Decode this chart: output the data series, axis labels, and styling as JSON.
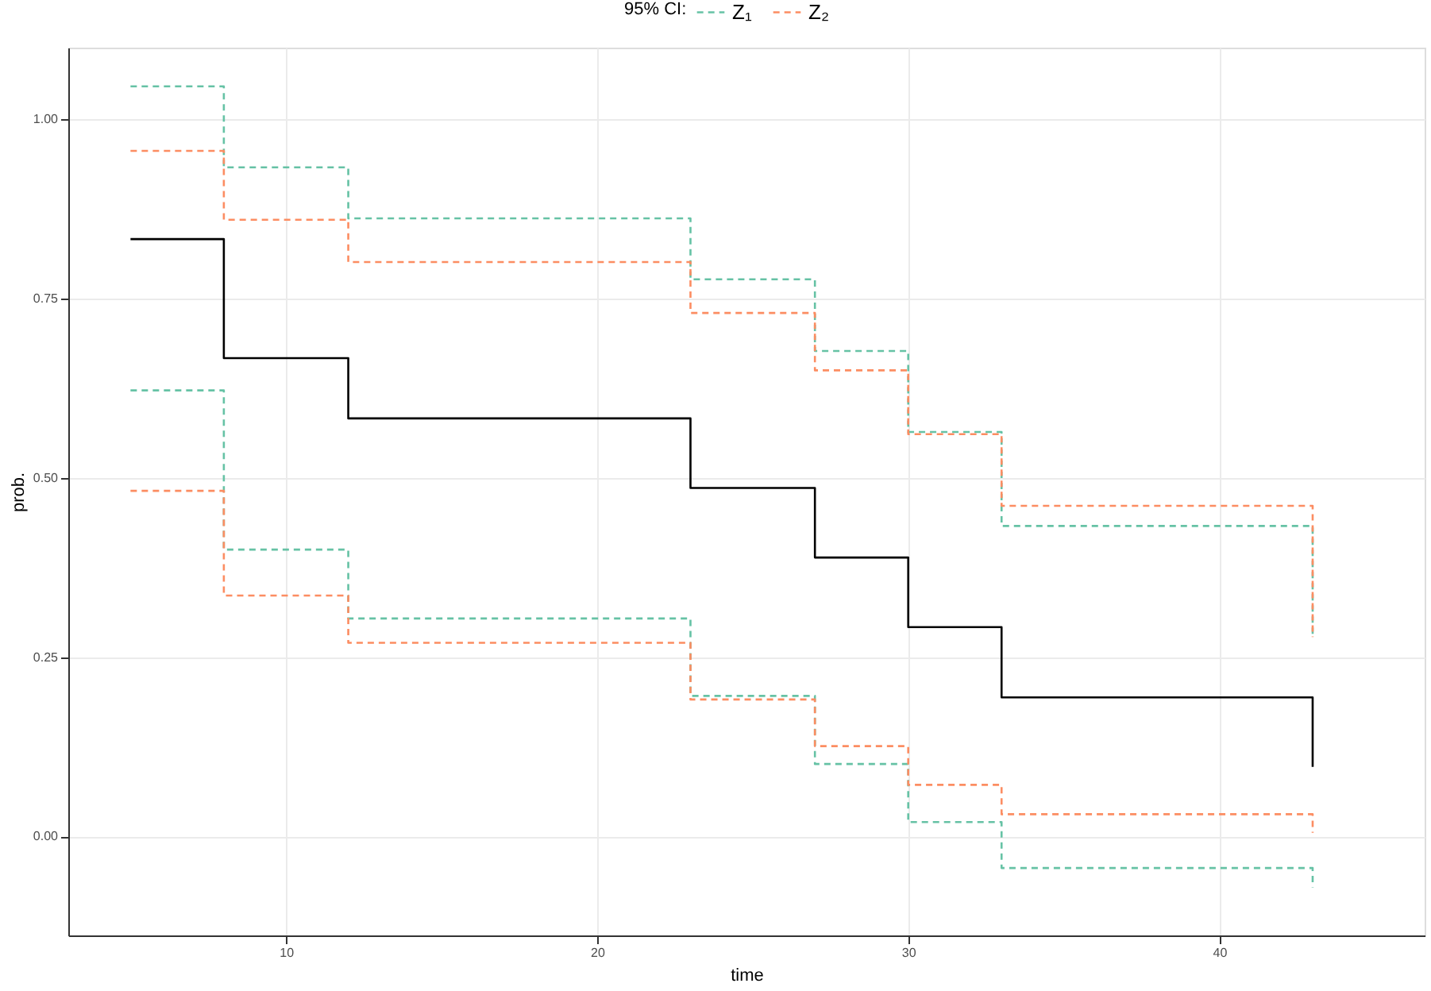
{
  "chart_data": {
    "type": "step",
    "xlabel": "time",
    "ylabel": "prob.",
    "legend_title": "95% CI:",
    "legend": "top",
    "x": [
      5,
      8,
      12,
      23,
      27,
      30,
      33,
      43
    ],
    "series": [
      {
        "color": "#000000",
        "line_style": "solid",
        "values": [
          0.833,
          0.667,
          0.583,
          0.486,
          0.389,
          0.292,
          0.194,
          0.097
        ]
      },
      {
        "name": "Z₁",
        "color": "#66c2a5",
        "line_style": "dashed",
        "values": [
          1.046,
          0.933,
          0.862,
          0.777,
          0.677,
          0.564,
          0.433,
          0.278
        ]
      },
      {
        "color": "#66c2a5",
        "line_style": "dashed",
        "values": [
          0.622,
          0.4,
          0.304,
          0.196,
          0.101,
          0.02,
          -0.044,
          -0.071
        ]
      },
      {
        "name": "Z₂",
        "color": "#fc8d62",
        "line_style": "dashed",
        "values": [
          0.956,
          0.86,
          0.801,
          0.73,
          0.65,
          0.561,
          0.461,
          0.278
        ]
      },
      {
        "color": "#fc8d62",
        "line_style": "dashed",
        "values": [
          0.482,
          0.336,
          0.27,
          0.191,
          0.126,
          0.072,
          0.031,
          0.005
        ]
      }
    ],
    "xlim": [
      3.0,
      46.6
    ],
    "ylim": [
      -0.138,
      1.1
    ],
    "xticks": [
      10,
      20,
      30,
      40
    ],
    "yticks": [
      {
        "value": 0,
        "label": "0.00"
      },
      {
        "value": 0.25,
        "label": "0.25"
      },
      {
        "value": 0.5,
        "label": "0.50"
      },
      {
        "value": 0.75,
        "label": "0.75"
      },
      {
        "value": 1,
        "label": "1.00"
      }
    ],
    "grid": true
  }
}
